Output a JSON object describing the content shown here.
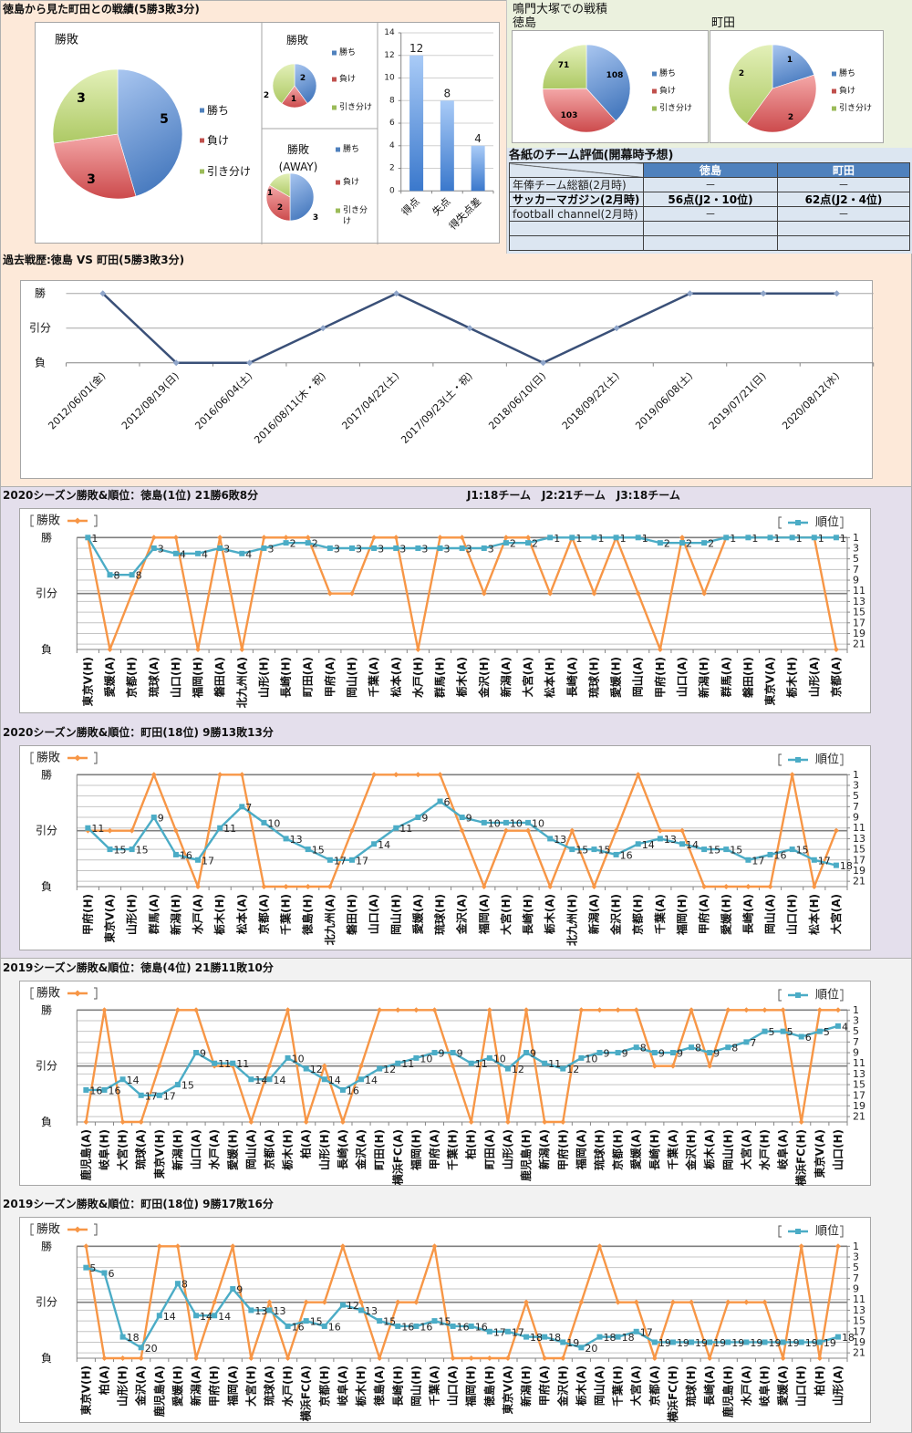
{
  "overview": {
    "title": "徳島から見た町田との戦績(5勝3敗3分)"
  },
  "naruto": {
    "title": "鳴門大塚での戦積"
  },
  "evaluation": {
    "title": "各紙のチーム評価(開幕時予想)",
    "header": [
      "",
      "徳島",
      "町田"
    ],
    "rows": [
      [
        "年俸チーム総額(2月時)",
        "－",
        "－"
      ],
      [
        "サッカーマガジン(2月時)",
        "56点(J2・10位)",
        "62点(J2・4位)"
      ],
      [
        "football channel(2月時)",
        "－",
        "－"
      ],
      [
        "",
        "",
        ""
      ],
      [
        "",
        "",
        ""
      ]
    ]
  },
  "season_2020": {
    "league_info": "J1:18チーム　J2:21チーム　J3:18チーム"
  },
  "colors": {
    "win": "#4f81bd",
    "loss": "#c0504d",
    "draw": "#9bbb59",
    "result_line": "#f79646",
    "rank_line": "#4bacc6",
    "history_line": "#3a5078",
    "history_marker": "#8fa5c9",
    "table_header": "#4f81bd",
    "table_row": "#dce6f1",
    "bg_top": "#fde9d9",
    "bg_2020": "#e4dfec",
    "bg_2019": "#f2f2f2",
    "bg_naruto": "#ebf1de"
  },
  "chart_data": [
    {
      "type": "pie",
      "title": "勝敗",
      "labels": [
        "勝ち",
        "負け",
        "引き分け"
      ],
      "values": [
        5,
        3,
        3
      ]
    },
    {
      "type": "pie",
      "title": "勝敗",
      "labels": [
        "勝ち",
        "負け",
        "引き分け"
      ],
      "values": [
        2,
        1,
        2
      ]
    },
    {
      "type": "pie",
      "title": "勝敗",
      "subtitle": "(AWAY)",
      "labels": [
        "勝ち",
        "負け",
        "引き分け"
      ],
      "values": [
        3,
        2,
        1
      ]
    },
    {
      "type": "bar",
      "categories": [
        "得点",
        "失点",
        "得失点差"
      ],
      "values": [
        12,
        8,
        4
      ],
      "ylim": [
        0,
        14
      ],
      "yticks": [
        0,
        2,
        4,
        6,
        8,
        10,
        12,
        14
      ]
    },
    {
      "type": "pie",
      "title": "徳島",
      "labels": [
        "勝ち",
        "負け",
        "引き分け"
      ],
      "values": [
        108,
        103,
        71
      ]
    },
    {
      "type": "pie",
      "title": "町田",
      "labels": [
        "勝ち",
        "負け",
        "引き分け"
      ],
      "values": [
        1,
        2,
        2
      ]
    },
    {
      "type": "line",
      "title": "過去戦歴:徳島 VS 町田(5勝3敗3分)",
      "y_levels": [
        "勝",
        "引分",
        "負"
      ],
      "categories": [
        "2012/06/01(金)",
        "2012/08/19(日)",
        "2016/06/04(土)",
        "2016/08/11(木・祝)",
        "2017/04/22(土)",
        "2017/09/23(土・祝)",
        "2018/06/10(日)",
        "2018/09/22(土)",
        "2019/06/08(土)",
        "2019/07/21(日)",
        "2020/08/12(水)"
      ],
      "values": [
        "勝",
        "負",
        "負",
        "引分",
        "勝",
        "引分",
        "負",
        "引分",
        "勝",
        "勝",
        "勝"
      ]
    },
    {
      "type": "line",
      "title": "2020シーズン勝敗&順位：徳島(1位) 21勝6敗8分",
      "y_levels": [
        "勝",
        "引分",
        "負"
      ],
      "rank_ticks": [
        1,
        3,
        5,
        7,
        9,
        11,
        13,
        15,
        17,
        19,
        21
      ],
      "categories": [
        "東京V(H)",
        "愛媛(A)",
        "京都(H)",
        "琉球(A)",
        "山口(H)",
        "福岡(H)",
        "磐田(A)",
        "北九州(A)",
        "山形(H)",
        "長崎(H)",
        "町田(A)",
        "甲府(A)",
        "岡山(H)",
        "千葉(A)",
        "松本(A)",
        "水戸(H)",
        "群馬(H)",
        "栃木(A)",
        "金沢(H)",
        "新潟(A)",
        "大宮(A)",
        "松本(H)",
        "長崎(A)",
        "琉球(H)",
        "愛媛(H)",
        "岡山(A)",
        "甲府(H)",
        "山口(A)",
        "新潟(H)",
        "群馬(A)",
        "磐田(H)",
        "東京V(A)",
        "栃木(H)",
        "山形(A)",
        "京都(A)"
      ],
      "series": [
        {
          "name": "勝敗",
          "color": "#f79646",
          "values": [
            "勝",
            "負",
            "引分",
            "勝",
            "勝",
            "負",
            "勝",
            "負",
            "勝",
            "勝",
            "勝",
            "引分",
            "引分",
            "勝",
            "勝",
            "負",
            "勝",
            "勝",
            "引分",
            "勝",
            "勝",
            "引分",
            "勝",
            "引分",
            "勝",
            "引分",
            "負",
            "勝",
            "引分",
            "勝",
            "勝",
            "勝",
            "勝",
            "勝",
            "負"
          ]
        },
        {
          "name": "順位",
          "color": "#4bacc6",
          "values": [
            1,
            8,
            8,
            3,
            4,
            4,
            3,
            4,
            3,
            2,
            2,
            3,
            3,
            3,
            3,
            3,
            3,
            3,
            3,
            2,
            2,
            1,
            1,
            1,
            1,
            1,
            2,
            2,
            2,
            1,
            1,
            1,
            1,
            1,
            1
          ]
        }
      ]
    },
    {
      "type": "line",
      "title": "2020シーズン勝敗&順位：町田(18位) 9勝13敗13分",
      "y_levels": [
        "勝",
        "引分",
        "負"
      ],
      "rank_ticks": [
        1,
        3,
        5,
        7,
        9,
        11,
        13,
        15,
        17,
        19,
        21
      ],
      "categories": [
        "甲府(H)",
        "東京V(A)",
        "山形(H)",
        "群馬(A)",
        "新潟(H)",
        "水戸(A)",
        "栃木(H)",
        "松本(A)",
        "京都(A)",
        "千葉(H)",
        "徳島(H)",
        "北九州(A)",
        "磐田(H)",
        "山口(A)",
        "岡山(H)",
        "愛媛(A)",
        "琉球(H)",
        "金沢(A)",
        "福岡(A)",
        "大宮(H)",
        "長崎(H)",
        "栃木(A)",
        "北九州(H)",
        "新潟(A)",
        "金沢(H)",
        "京都(H)",
        "千葉(A)",
        "福岡(H)",
        "甲府(A)",
        "愛媛(H)",
        "長崎(A)",
        "岡山(A)",
        "山口(H)",
        "松本(H)",
        "大宮(A)"
      ],
      "series": [
        {
          "name": "勝敗",
          "color": "#f79646",
          "values": [
            "引分",
            "引分",
            "引分",
            "勝",
            "引分",
            "負",
            "勝",
            "勝",
            "負",
            "負",
            "負",
            "負",
            "引分",
            "勝",
            "勝",
            "勝",
            "勝",
            "引分",
            "負",
            "引分",
            "引分",
            "負",
            "引分",
            "負",
            "引分",
            "勝",
            "引分",
            "引分",
            "負",
            "負",
            "負",
            "負",
            "勝",
            "負",
            "引分"
          ]
        },
        {
          "name": "順位",
          "color": "#4bacc6",
          "values": [
            11,
            15,
            15,
            9,
            16,
            17,
            11,
            7,
            10,
            13,
            15,
            17,
            17,
            14,
            11,
            9,
            6,
            9,
            10,
            10,
            10,
            13,
            15,
            15,
            16,
            14,
            13,
            14,
            15,
            15,
            17,
            16,
            15,
            17,
            18
          ]
        }
      ]
    },
    {
      "type": "line",
      "title": "2019シーズン勝敗&順位：徳島(4位) 21勝11敗10分",
      "y_levels": [
        "勝",
        "引分",
        "負"
      ],
      "rank_ticks": [
        1,
        3,
        5,
        7,
        9,
        11,
        13,
        15,
        17,
        19,
        21
      ],
      "categories": [
        "鹿児島(A)",
        "岐阜(H)",
        "大宮(H)",
        "琉球(A)",
        "東京V(H)",
        "新潟(H)",
        "山口(A)",
        "水戸(A)",
        "愛媛(H)",
        "岡山(A)",
        "京都(A)",
        "栃木(H)",
        "柏(A)",
        "山形(H)",
        "長崎(A)",
        "金沢(A)",
        "町田(H)",
        "横浜FC(A)",
        "福岡(H)",
        "甲府(A)",
        "千葉(H)",
        "柏(H)",
        "町田(A)",
        "山形(A)",
        "鹿児島(H)",
        "新潟(A)",
        "甲府(H)",
        "福岡(A)",
        "琉球(H)",
        "京都(H)",
        "愛媛(A)",
        "長崎(H)",
        "千葉(A)",
        "金沢(H)",
        "栃木(A)",
        "岡山(H)",
        "大宮(A)",
        "水戸(H)",
        "岐阜(A)",
        "横浜FC(H)",
        "東京V(A)",
        "山口(H)"
      ],
      "series": [
        {
          "name": "勝敗",
          "color": "#f79646",
          "values": [
            "負",
            "勝",
            "負",
            "負",
            "引分",
            "勝",
            "勝",
            "引分",
            "引分",
            "負",
            "引分",
            "勝",
            "負",
            "引分",
            "負",
            "引分",
            "勝",
            "勝",
            "勝",
            "勝",
            "引分",
            "負",
            "勝",
            "負",
            "勝",
            "負",
            "負",
            "勝",
            "勝",
            "勝",
            "勝",
            "引分",
            "引分",
            "勝",
            "引分",
            "勝",
            "勝",
            "勝",
            "勝",
            "負",
            "勝",
            "勝"
          ]
        },
        {
          "name": "順位",
          "color": "#4bacc6",
          "values": [
            16,
            16,
            14,
            17,
            17,
            15,
            9,
            11,
            11,
            14,
            14,
            10,
            12,
            14,
            16,
            14,
            12,
            11,
            10,
            9,
            9,
            11,
            10,
            12,
            9,
            11,
            12,
            10,
            9,
            9,
            8,
            9,
            9,
            8,
            9,
            8,
            7,
            5,
            5,
            6,
            5,
            4
          ]
        }
      ]
    },
    {
      "type": "line",
      "title": "2019シーズン勝敗&順位：町田(18位) 9勝17敗16分",
      "y_levels": [
        "勝",
        "引分",
        "負"
      ],
      "rank_ticks": [
        1,
        3,
        5,
        7,
        9,
        11,
        13,
        15,
        17,
        19,
        21
      ],
      "categories": [
        "東京V(H)",
        "柏(A)",
        "山形(H)",
        "金沢(A)",
        "鹿児島(A)",
        "愛媛(H)",
        "新潟(A)",
        "甲府(H)",
        "福岡(A)",
        "大宮(H)",
        "琉球(A)",
        "水戸(H)",
        "横浜FC(A)",
        "京都(H)",
        "岐阜(A)",
        "栃木(H)",
        "徳島(A)",
        "長崎(H)",
        "岡山(H)",
        "千葉(A)",
        "山口(A)",
        "福岡(H)",
        "徳島(H)",
        "東京V(A)",
        "新潟(H)",
        "甲府(A)",
        "金沢(H)",
        "栃木(A)",
        "岡山(A)",
        "千葉(H)",
        "大宮(A)",
        "京都(A)",
        "横浜FC(H)",
        "琉球(H)",
        "長崎(A)",
        "鹿児島(H)",
        "水戸(A)",
        "岐阜(H)",
        "愛媛(A)",
        "山口(H)",
        "柏(H)",
        "山形(A)"
      ],
      "series": [
        {
          "name": "勝敗",
          "color": "#f79646",
          "values": [
            "勝",
            "負",
            "負",
            "負",
            "勝",
            "勝",
            "負",
            "引分",
            "勝",
            "負",
            "引分",
            "負",
            "引分",
            "引分",
            "勝",
            "引分",
            "負",
            "引分",
            "引分",
            "勝",
            "負",
            "負",
            "負",
            "負",
            "引分",
            "負",
            "負",
            "引分",
            "勝",
            "引分",
            "引分",
            "負",
            "引分",
            "引分",
            "負",
            "引分",
            "引分",
            "引分",
            "負",
            "勝",
            "負",
            "勝"
          ]
        },
        {
          "name": "順位",
          "color": "#4bacc6",
          "values": [
            5,
            6,
            18,
            20,
            14,
            8,
            14,
            14,
            9,
            13,
            13,
            16,
            15,
            16,
            12,
            13,
            15,
            16,
            16,
            15,
            16,
            16,
            17,
            17,
            18,
            18,
            19,
            20,
            18,
            18,
            17,
            19,
            19,
            19,
            19,
            19,
            19,
            19,
            19,
            19,
            19,
            18
          ]
        }
      ]
    }
  ]
}
